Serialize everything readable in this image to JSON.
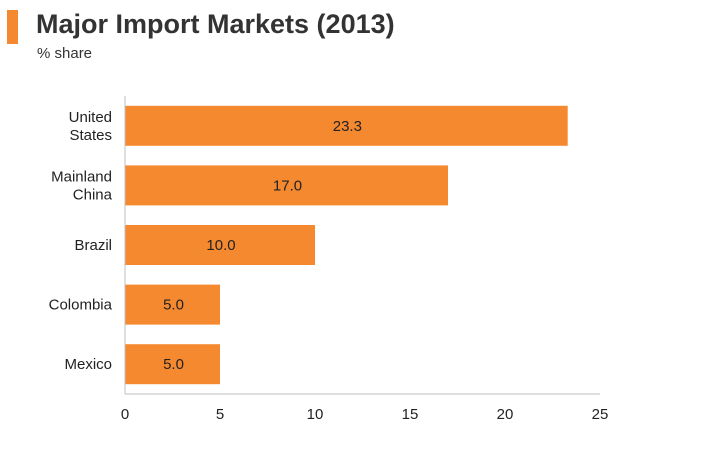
{
  "header": {
    "title": "Major Import Markets (2013)",
    "subtitle": "% share",
    "accent_color": "#f5892f"
  },
  "chart_data": {
    "type": "bar",
    "orientation": "horizontal",
    "title": "Major Import Markets (2013)",
    "subtitle": "% share",
    "categories": [
      [
        "United",
        "States"
      ],
      [
        "Mainland",
        "China"
      ],
      [
        "Brazil"
      ],
      [
        "Colombia"
      ],
      [
        "Mexico"
      ]
    ],
    "values": [
      23.3,
      17.0,
      10.0,
      5.0,
      5.0
    ],
    "value_labels": [
      "23.3",
      "17.0",
      "10.0",
      "5.0",
      "5.0"
    ],
    "xlim": [
      0,
      25
    ],
    "xticks": [
      0,
      5,
      10,
      15,
      20,
      25
    ],
    "grid": false,
    "bar_color": "#f5892f",
    "xlabel": "",
    "ylabel": ""
  }
}
